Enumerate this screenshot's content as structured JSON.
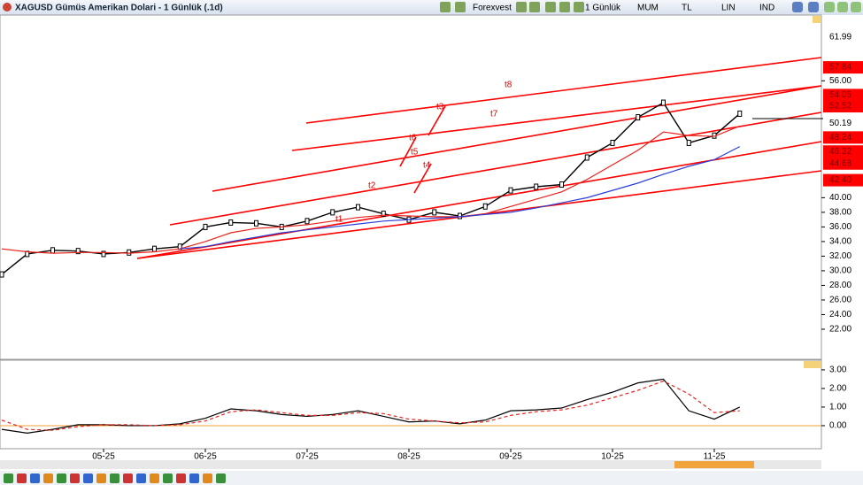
{
  "header": {
    "title": "XAGUSD Gümüs Amerikan Dolari - 1 Günlük (.1d)",
    "toolbar": [
      "Forexvest",
      "1 Günlük",
      "MUM",
      "TL",
      "LIN",
      "IND"
    ]
  },
  "annotations": [
    "t1",
    "t2",
    "t3",
    "t4",
    "t5",
    "t6",
    "t7",
    "t8"
  ],
  "chart_data": [
    {
      "type": "line",
      "categories": [
        null,
        null,
        null,
        null,
        "05-25",
        null,
        null,
        null,
        "06-25",
        null,
        null,
        null,
        "07-25",
        null,
        null,
        null,
        "08-25",
        null,
        null,
        null,
        "09-25",
        null,
        null,
        null,
        "10-25",
        null,
        null,
        null,
        "11-25",
        null
      ],
      "series": [
        {
          "color": "#000000",
          "values": [
            29.5,
            32.3,
            32.8,
            32.7,
            32.3,
            32.5,
            33.0,
            33.3,
            36.0,
            36.6,
            36.5,
            36.0,
            36.8,
            38.0,
            38.7,
            37.8,
            37.0,
            38.0,
            37.5,
            38.8,
            41.0,
            41.5,
            41.8,
            45.5,
            47.5,
            51.0,
            53.0,
            47.5,
            48.5,
            51.5
          ]
        },
        {
          "color": "#e8231c",
          "values": [
            33.0,
            32.6,
            32.4,
            32.5,
            32.5,
            32.4,
            32.6,
            33.0,
            34.0,
            35.2,
            35.8,
            36.0,
            36.3,
            36.8,
            37.3,
            37.6,
            37.5,
            37.4,
            37.4,
            37.8,
            38.8,
            39.8,
            40.8,
            42.5,
            44.5,
            46.5,
            49.0,
            48.5,
            48.4,
            49.8
          ]
        },
        {
          "color": "#2b3fd6",
          "values": [
            null,
            null,
            null,
            null,
            null,
            null,
            null,
            33.0,
            33.3,
            34.0,
            34.6,
            35.2,
            35.6,
            36.0,
            36.4,
            36.8,
            37.0,
            37.2,
            37.4,
            37.7,
            38.0,
            38.6,
            39.3,
            40.0,
            41.0,
            42.0,
            43.2,
            44.3,
            45.2,
            47.0
          ]
        }
      ],
      "ylim": [
        18,
        65
      ],
      "yticks": [
        {
          "value": 22,
          "label": "22.00"
        },
        {
          "value": 24,
          "label": "24.00"
        },
        {
          "value": 26,
          "label": "26.00"
        },
        {
          "value": 28,
          "label": "28.00"
        },
        {
          "value": 30,
          "label": "30.00"
        },
        {
          "value": 32,
          "label": "32.00"
        },
        {
          "value": 34,
          "label": "34.00"
        },
        {
          "value": 36,
          "label": "36.00"
        },
        {
          "value": 38,
          "label": "38.00"
        },
        {
          "value": 40,
          "label": "40.00"
        },
        {
          "value": 56,
          "label": "56.00"
        }
      ],
      "price_levels": [
        61.99,
        57.84,
        54.05,
        52.52,
        50.19,
        48.24,
        46.32,
        44.68,
        {
          "value": 42.4,
          "label": "42.40"
        }
      ]
    },
    {
      "type": "line",
      "series": [
        {
          "color": "#000000",
          "values": [
            -0.2,
            -0.4,
            -0.2,
            0.05,
            0.05,
            0.0,
            0.0,
            0.1,
            0.4,
            0.9,
            0.8,
            0.6,
            0.5,
            0.6,
            0.8,
            0.5,
            0.2,
            0.25,
            0.1,
            0.3,
            0.8,
            0.85,
            0.95,
            1.4,
            1.8,
            2.3,
            2.5,
            0.8,
            0.35,
            1.0
          ]
        },
        {
          "color": "#e8231c",
          "dashed": true,
          "values": [
            0.3,
            -0.2,
            -0.25,
            -0.05,
            0.05,
            0.05,
            0.0,
            0.05,
            0.25,
            0.75,
            0.85,
            0.7,
            0.55,
            0.55,
            0.7,
            0.65,
            0.35,
            0.25,
            0.15,
            0.2,
            0.55,
            0.75,
            0.85,
            1.1,
            1.5,
            1.9,
            2.4,
            1.7,
            0.7,
            0.8
          ]
        }
      ],
      "ylim": [
        -1.24,
        3.52
      ],
      "yticks": [
        {
          "value": 3,
          "label": "3.00"
        },
        {
          "value": 2,
          "label": "2.00"
        },
        {
          "value": 1,
          "label": "1.00"
        },
        {
          "value": 0,
          "label": "0.00"
        }
      ],
      "zero_line": true
    }
  ]
}
